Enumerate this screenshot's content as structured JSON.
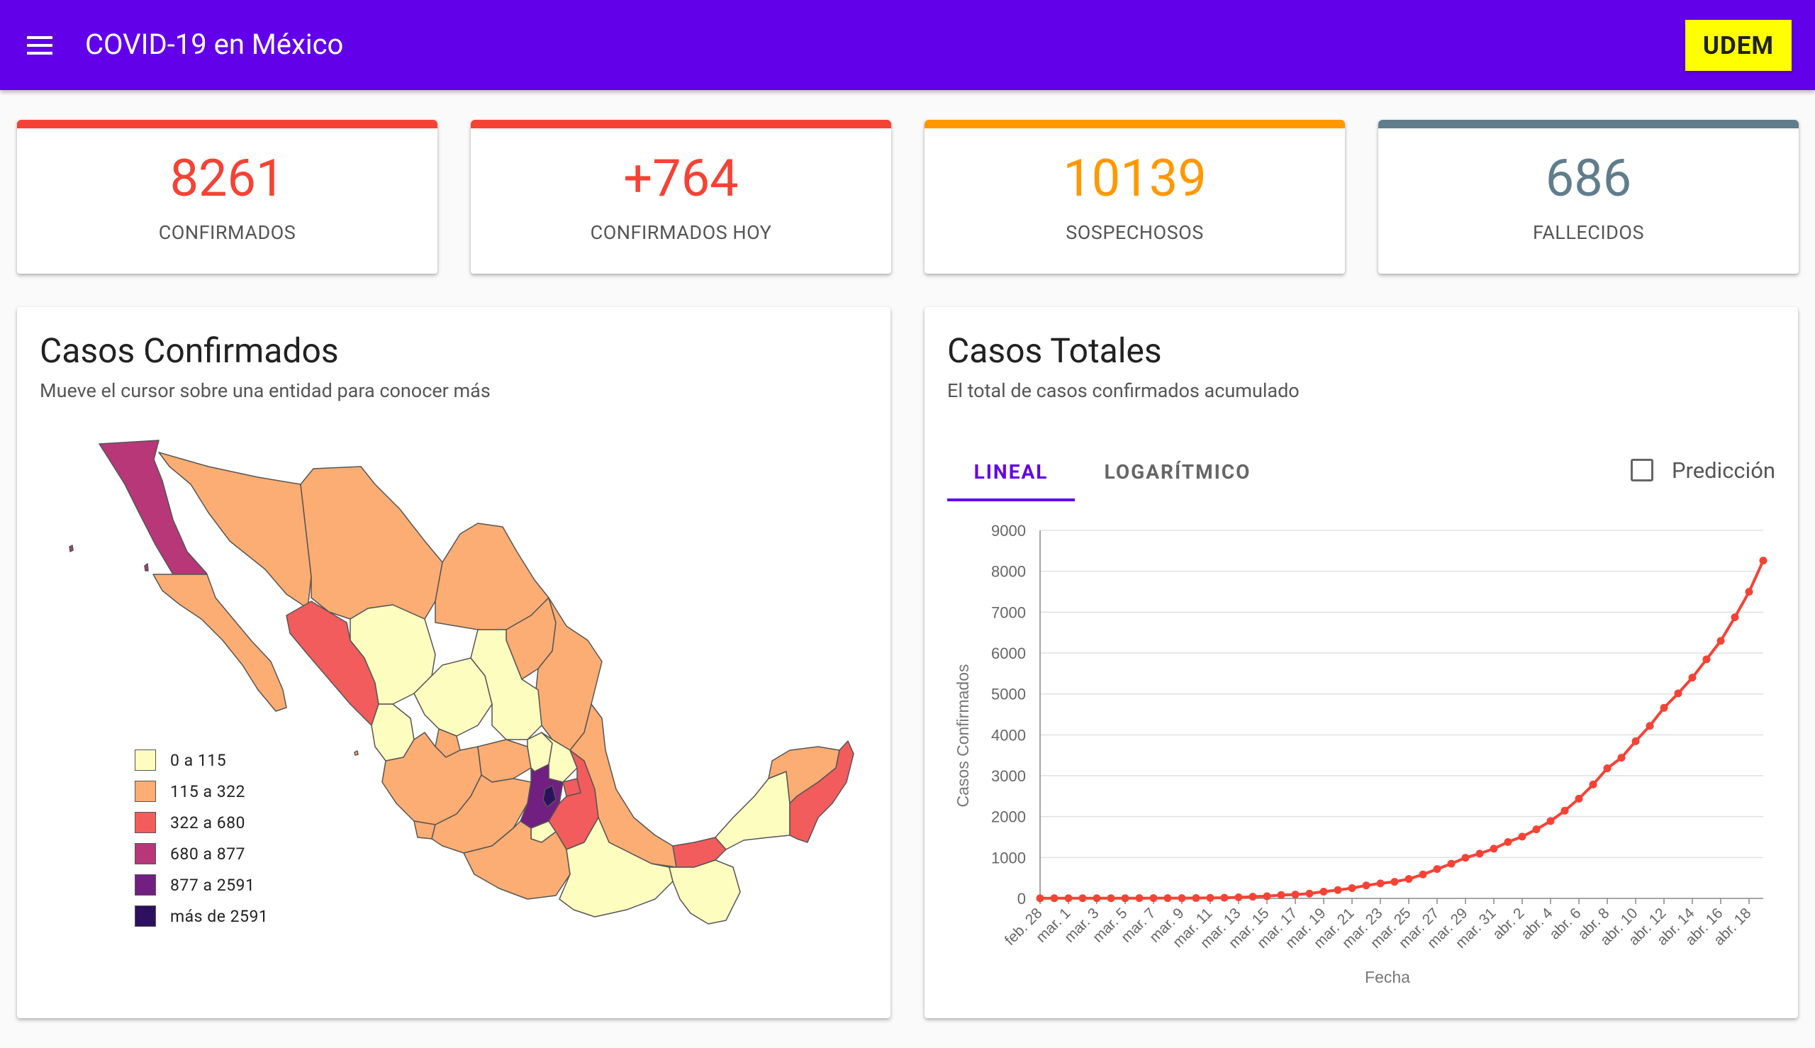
{
  "appbar": {
    "title": "COVID-19 en México",
    "action_label": "UDEM",
    "bg_color": "#6200ea",
    "menu_icon": "hamburger-menu-icon"
  },
  "stats": [
    {
      "value": "8261",
      "label": "CONFIRMADOS",
      "color": "#f44336"
    },
    {
      "value": "+764",
      "label": "CONFIRMADOS HOY",
      "color": "#f44336"
    },
    {
      "value": "10139",
      "label": "SOSPECHOSOS",
      "color": "#ff9800"
    },
    {
      "value": "686",
      "label": "FALLECIDOS",
      "color": "#607d8b"
    }
  ],
  "map_panel": {
    "title": "Casos Confirmados",
    "subtitle": "Mueve el cursor sobre una entidad para conocer más",
    "legend": [
      {
        "label": "0 a 115",
        "color": "#fefdc0"
      },
      {
        "label": "115 a 322",
        "color": "#fcad73"
      },
      {
        "label": "322 a 680",
        "color": "#f25c5c"
      },
      {
        "label": "680 a 877",
        "color": "#b73779"
      },
      {
        "label": "877 a 2591",
        "color": "#711f81"
      },
      {
        "label": "más de 2591",
        "color": "#2c115f"
      }
    ]
  },
  "chart_panel": {
    "title": "Casos Totales",
    "subtitle": "El total de casos confirmados acumulado",
    "tabs": [
      {
        "label": "LINEAL",
        "active": true
      },
      {
        "label": "LOGARÍTMICO",
        "active": false
      }
    ],
    "checkbox": {
      "label": "Predicción",
      "checked": false
    }
  },
  "chart_data": {
    "type": "line",
    "xlabel": "Fecha",
    "ylabel": "Casos Confirmados",
    "ylim": [
      0,
      9000
    ],
    "yticks": [
      0,
      1000,
      2000,
      3000,
      4000,
      5000,
      6000,
      7000,
      8000,
      9000
    ],
    "xticks": [
      "feb. 28",
      "mar. 1",
      "mar. 3",
      "mar. 5",
      "mar. 7",
      "mar. 9",
      "mar. 11",
      "mar. 13",
      "mar. 15",
      "mar. 17",
      "mar. 19",
      "mar. 21",
      "mar. 23",
      "mar. 25",
      "mar. 27",
      "mar. 29",
      "mar. 31",
      "abr. 2",
      "abr. 4",
      "abr. 6",
      "abr. 8",
      "abr. 10",
      "abr. 12",
      "abr. 14",
      "abr. 16",
      "abr. 18"
    ],
    "grid": true,
    "color": "#f44336",
    "series": [
      {
        "x": [
          "feb. 28",
          "feb. 29",
          "mar. 1",
          "mar. 2",
          "mar. 3",
          "mar. 4",
          "mar. 5",
          "mar. 6",
          "mar. 7",
          "mar. 8",
          "mar. 9",
          "mar. 10",
          "mar. 11",
          "mar. 12",
          "mar. 13",
          "mar. 14",
          "mar. 15",
          "mar. 16",
          "mar. 17",
          "mar. 18",
          "mar. 19",
          "mar. 20",
          "mar. 21",
          "mar. 22",
          "mar. 23",
          "mar. 24",
          "mar. 25",
          "mar. 26",
          "mar. 27",
          "mar. 28",
          "mar. 29",
          "mar. 30",
          "mar. 31",
          "abr. 1",
          "abr. 2",
          "abr. 3",
          "abr. 4",
          "abr. 5",
          "abr. 6",
          "abr. 7",
          "abr. 8",
          "abr. 9",
          "abr. 10",
          "abr. 11",
          "abr. 12",
          "abr. 13",
          "abr. 14",
          "abr. 15",
          "abr. 16",
          "abr. 17",
          "abr. 18",
          "abr. 19"
        ],
        "values": [
          2,
          4,
          5,
          5,
          5,
          5,
          5,
          6,
          7,
          7,
          7,
          8,
          12,
          16,
          26,
          41,
          53,
          82,
          93,
          118,
          164,
          203,
          251,
          316,
          367,
          405,
          475,
          585,
          717,
          848,
          993,
          1094,
          1215,
          1378,
          1510,
          1688,
          1890,
          2143,
          2439,
          2785,
          3181,
          3441,
          3844,
          4219,
          4661,
          5014,
          5399,
          5847,
          6297,
          6875,
          7497,
          8261
        ]
      }
    ]
  }
}
